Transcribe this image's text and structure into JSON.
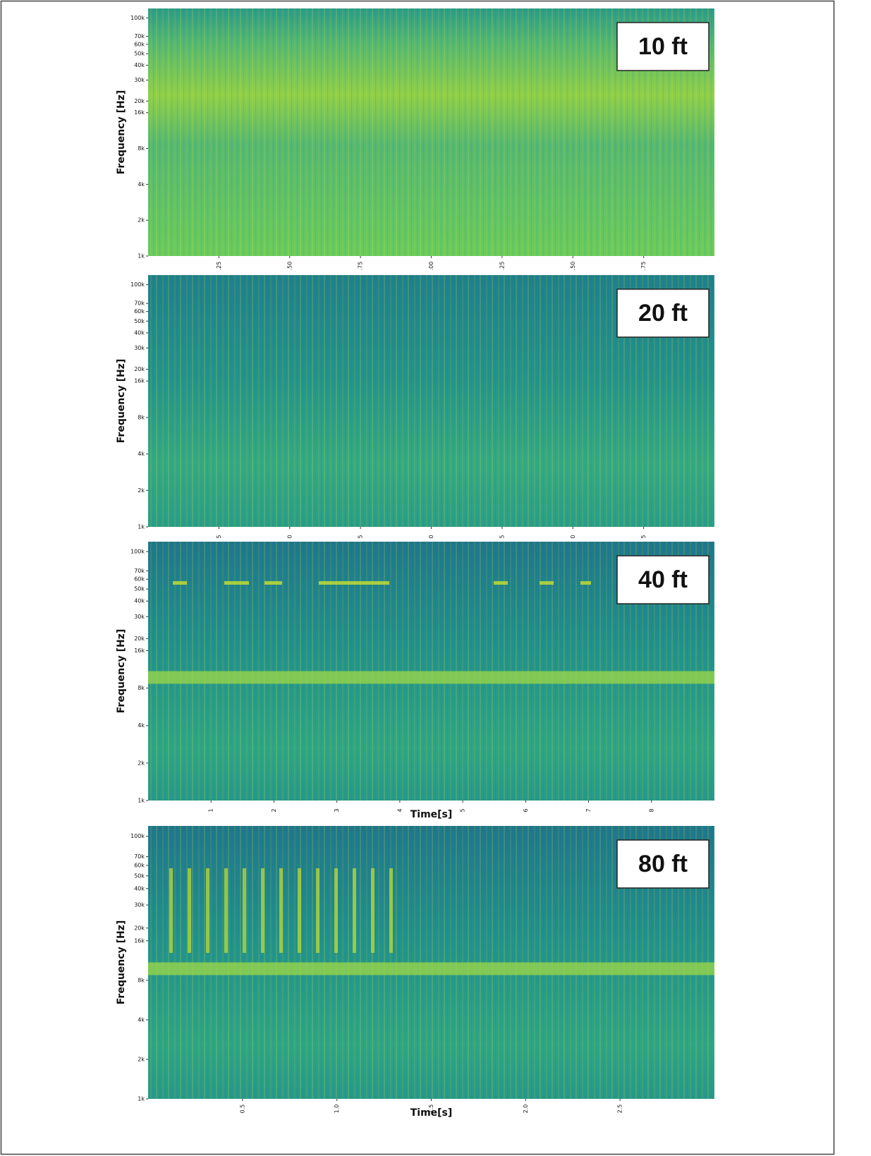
{
  "chart_data": [
    {
      "type": "spectrogram",
      "annotation": "10 ft",
      "ylabel": "Frequency [Hz]",
      "log_y": true,
      "xlim": [
        0,
        2.0
      ],
      "xticks": [
        {
          "value": 0.25,
          "label": ".25"
        },
        {
          "value": 0.5,
          "label": ".50"
        },
        {
          "value": 0.75,
          "label": ".75"
        },
        {
          "value": 1.0,
          "label": ".00"
        },
        {
          "value": 1.25,
          "label": ".25"
        },
        {
          "value": 1.5,
          "label": ".50"
        },
        {
          "value": 1.75,
          "label": ".75"
        }
      ],
      "ylim": [
        1000,
        120000
      ],
      "yticks": [
        {
          "value": 1000,
          "label": "1k"
        },
        {
          "value": 2000,
          "label": "2k"
        },
        {
          "value": 4000,
          "label": "4k"
        },
        {
          "value": 8000,
          "label": "8k"
        },
        {
          "value": 16000,
          "label": "16k"
        },
        {
          "value": 20000,
          "label": "20k"
        },
        {
          "value": 30000,
          "label": "30k"
        },
        {
          "value": 40000,
          "label": "40k"
        },
        {
          "value": 50000,
          "label": "50k"
        },
        {
          "value": 60000,
          "label": "60k"
        },
        {
          "value": 70000,
          "label": "70k"
        },
        {
          "value": 100000,
          "label": "100k"
        }
      ]
    },
    {
      "type": "spectrogram",
      "annotation": "20 ft",
      "ylabel": "Frequency [Hz]",
      "log_y": true,
      "xlim": [
        0,
        20
      ],
      "xticks": [
        {
          "value": 2.5,
          "label": "5"
        },
        {
          "value": 5,
          "label": "0"
        },
        {
          "value": 7.5,
          "label": "5"
        },
        {
          "value": 10,
          "label": "0"
        },
        {
          "value": 12.5,
          "label": "5"
        },
        {
          "value": 15,
          "label": "0"
        },
        {
          "value": 17.5,
          "label": "5"
        }
      ],
      "ylim": [
        1000,
        120000
      ],
      "yticks": [
        {
          "value": 1000,
          "label": "1k"
        },
        {
          "value": 2000,
          "label": "2k"
        },
        {
          "value": 4000,
          "label": "4k"
        },
        {
          "value": 8000,
          "label": "8k"
        },
        {
          "value": 16000,
          "label": "16k"
        },
        {
          "value": 20000,
          "label": "20k"
        },
        {
          "value": 30000,
          "label": "30k"
        },
        {
          "value": 40000,
          "label": "40k"
        },
        {
          "value": 50000,
          "label": "50k"
        },
        {
          "value": 60000,
          "label": "60k"
        },
        {
          "value": 70000,
          "label": "70k"
        },
        {
          "value": 100000,
          "label": "100k"
        }
      ]
    },
    {
      "type": "spectrogram",
      "annotation": "40 ft",
      "ylabel": "Frequency [Hz]",
      "xlabel": "Time[s]",
      "log_y": true,
      "xlim": [
        0,
        9
      ],
      "xticks": [
        1,
        2,
        3,
        4,
        5,
        6,
        7,
        8
      ],
      "ylim": [
        1000,
        120000
      ],
      "yticks": [
        {
          "value": 1000,
          "label": "1k"
        },
        {
          "value": 2000,
          "label": "2k"
        },
        {
          "value": 4000,
          "label": "4k"
        },
        {
          "value": 8000,
          "label": "8k"
        },
        {
          "value": 16000,
          "label": "16k"
        },
        {
          "value": 20000,
          "label": "20k"
        },
        {
          "value": 30000,
          "label": "30k"
        },
        {
          "value": 40000,
          "label": "40k"
        },
        {
          "value": 50000,
          "label": "50k"
        },
        {
          "value": 60000,
          "label": "60k"
        },
        {
          "value": 70000,
          "label": "70k"
        },
        {
          "value": 100000,
          "label": "100k"
        }
      ]
    },
    {
      "type": "spectrogram",
      "annotation": "80 ft",
      "ylabel": "Frequency [Hz]",
      "xlabel": "Time[s]",
      "log_y": true,
      "xlim": [
        0,
        3.0
      ],
      "xticks": [
        0.5,
        {
          "value": 1.0,
          "label": "1.0"
        },
        1.5,
        {
          "value": 2.0,
          "label": "2.0"
        },
        2.5
      ],
      "ylim": [
        1000,
        120000
      ],
      "yticks": [
        {
          "value": 1000,
          "label": "1k"
        },
        {
          "value": 2000,
          "label": "2k"
        },
        {
          "value": 4000,
          "label": "4k"
        },
        {
          "value": 8000,
          "label": "8k"
        },
        {
          "value": 16000,
          "label": "16k"
        },
        {
          "value": 20000,
          "label": "20k"
        },
        {
          "value": 30000,
          "label": "30k"
        },
        {
          "value": 40000,
          "label": "40k"
        },
        {
          "value": 50000,
          "label": "50k"
        },
        {
          "value": 60000,
          "label": "60k"
        },
        {
          "value": 70000,
          "label": "70k"
        },
        {
          "value": 100000,
          "label": "100k"
        }
      ]
    }
  ]
}
